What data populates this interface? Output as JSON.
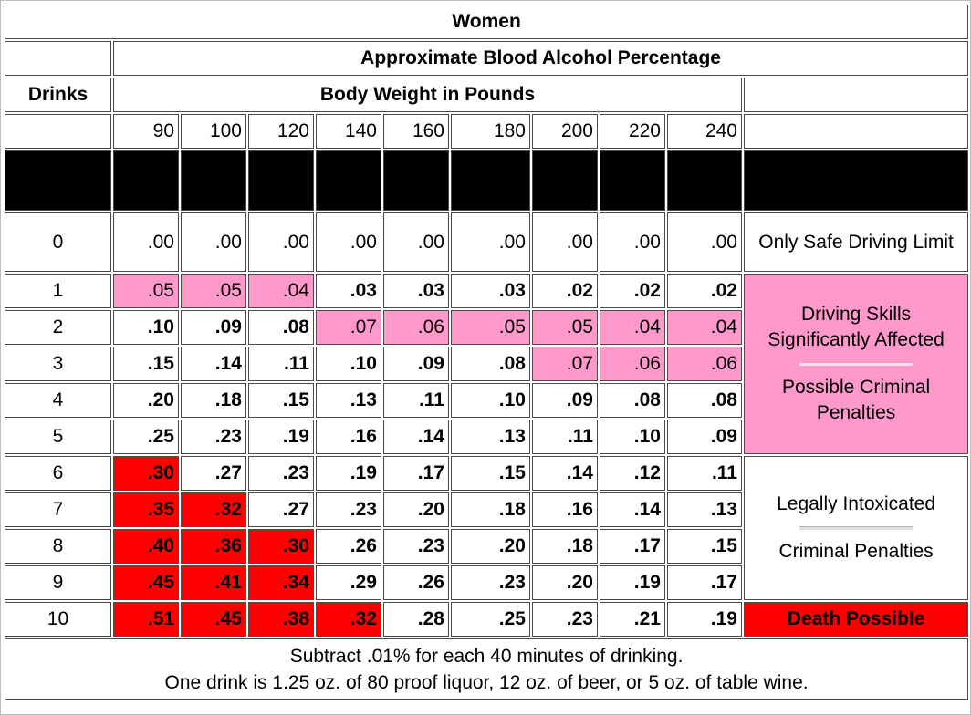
{
  "title": "Women",
  "subtitle": "Approximate Blood Alcohol Percentage",
  "drinks_label": "Drinks",
  "weight_label": "Body Weight in Pounds",
  "weights": [
    "90",
    "100",
    "120",
    "140",
    "160",
    "180",
    "200",
    "220",
    "240"
  ],
  "effects": {
    "safe": "Only Safe Driving Limit",
    "impaired": "Driving Skills Significantly Affected",
    "impaired_penalties": "Possible Criminal Penalties",
    "intoxicated": "Legally Intoxicated",
    "intoxicated_penalties": "Criminal Penalties",
    "death": "Death Possible"
  },
  "colors": {
    "pink": "#ff99cc",
    "red": "#ff0000",
    "black": "#000000"
  },
  "footer": {
    "line1": "Subtract .01% for each 40 minutes of drinking.",
    "line2": "One drink is 1.25 oz. of 80 proof liquor, 12 oz. of beer, or 5 oz. of table wine."
  },
  "chart_data": {
    "type": "table",
    "title": "Women",
    "subtitle": "Approximate Blood Alcohol Percentage",
    "row_header": "Drinks",
    "column_header": "Body Weight in Pounds",
    "columns": [
      "90",
      "100",
      "120",
      "140",
      "160",
      "180",
      "200",
      "220",
      "240"
    ],
    "rows": [
      {
        "drinks": "0",
        "values": [
          ".00",
          ".00",
          ".00",
          ".00",
          ".00",
          ".00",
          ".00",
          ".00",
          ".00"
        ],
        "shade": [
          "",
          "",
          "",
          "",
          "",
          "",
          "",
          "",
          ""
        ]
      },
      {
        "drinks": "1",
        "values": [
          ".05",
          ".05",
          ".04",
          ".03",
          ".03",
          ".03",
          ".02",
          ".02",
          ".02"
        ],
        "shade": [
          "pink",
          "pink",
          "pink",
          "",
          "",
          "",
          "",
          "",
          ""
        ]
      },
      {
        "drinks": "2",
        "values": [
          ".10",
          ".09",
          ".08",
          ".07",
          ".06",
          ".05",
          ".05",
          ".04",
          ".04"
        ],
        "shade": [
          "",
          "",
          "",
          "pink",
          "pink",
          "pink",
          "pink",
          "pink",
          "pink"
        ]
      },
      {
        "drinks": "3",
        "values": [
          ".15",
          ".14",
          ".11",
          ".10",
          ".09",
          ".08",
          ".07",
          ".06",
          ".06"
        ],
        "shade": [
          "",
          "",
          "",
          "",
          "",
          "",
          "pink",
          "pink",
          "pink"
        ]
      },
      {
        "drinks": "4",
        "values": [
          ".20",
          ".18",
          ".15",
          ".13",
          ".11",
          ".10",
          ".09",
          ".08",
          ".08"
        ],
        "shade": [
          "",
          "",
          "",
          "",
          "",
          "",
          "",
          "",
          ""
        ]
      },
      {
        "drinks": "5",
        "values": [
          ".25",
          ".23",
          ".19",
          ".16",
          ".14",
          ".13",
          ".11",
          ".10",
          ".09"
        ],
        "shade": [
          "",
          "",
          "",
          "",
          "",
          "",
          "",
          "",
          ""
        ]
      },
      {
        "drinks": "6",
        "values": [
          ".30",
          ".27",
          ".23",
          ".19",
          ".17",
          ".15",
          ".14",
          ".12",
          ".11"
        ],
        "shade": [
          "red",
          "",
          "",
          "",
          "",
          "",
          "",
          "",
          ""
        ]
      },
      {
        "drinks": "7",
        "values": [
          ".35",
          ".32",
          ".27",
          ".23",
          ".20",
          ".18",
          ".16",
          ".14",
          ".13"
        ],
        "shade": [
          "red",
          "red",
          "",
          "",
          "",
          "",
          "",
          "",
          ""
        ]
      },
      {
        "drinks": "8",
        "values": [
          ".40",
          ".36",
          ".30",
          ".26",
          ".23",
          ".20",
          ".18",
          ".17",
          ".15"
        ],
        "shade": [
          "red",
          "red",
          "red",
          "",
          "",
          "",
          "",
          "",
          ""
        ]
      },
      {
        "drinks": "9",
        "values": [
          ".45",
          ".41",
          ".34",
          ".29",
          ".26",
          ".23",
          ".20",
          ".19",
          ".17"
        ],
        "shade": [
          "red",
          "red",
          "red",
          "",
          "",
          "",
          "",
          "",
          ""
        ]
      },
      {
        "drinks": "10",
        "values": [
          ".51",
          ".45",
          ".38",
          ".32",
          ".28",
          ".25",
          ".23",
          ".21",
          ".19"
        ],
        "shade": [
          "red",
          "red",
          "red",
          "red",
          "",
          "",
          "",
          "",
          ""
        ]
      }
    ]
  }
}
